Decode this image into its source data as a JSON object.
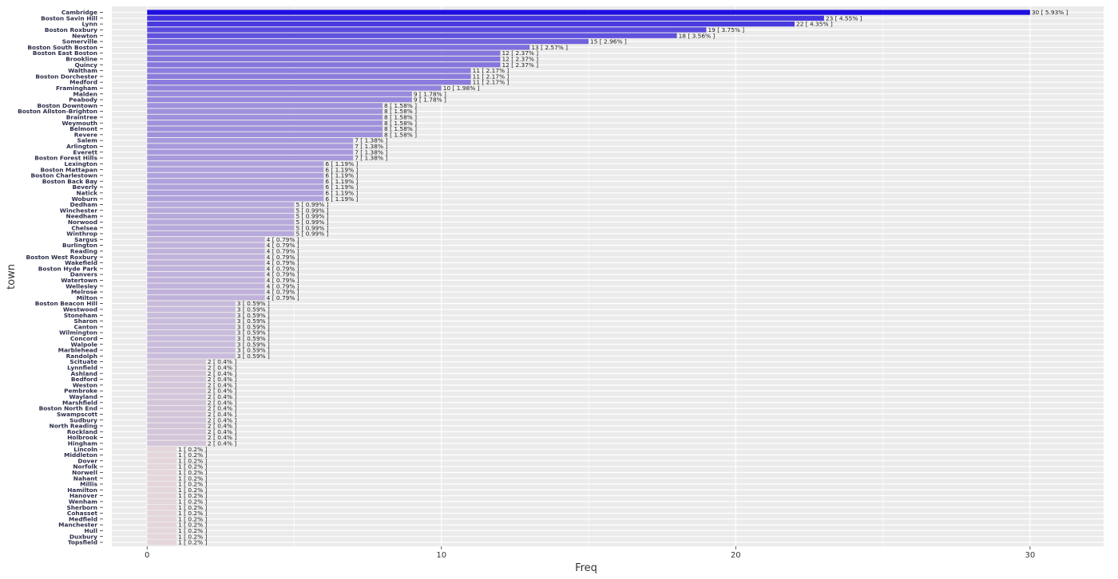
{
  "chart_data": {
    "type": "bar",
    "orientation": "horizontal",
    "xlabel": "Freq",
    "ylabel": "town",
    "xlim": [
      -1.2,
      32.5
    ],
    "xticks": [
      0,
      10,
      20,
      30
    ],
    "grid": true,
    "legend": "none",
    "colors": {
      "background": "#ebebeb",
      "grid": "#ffffff",
      "bar_high": "#1f0fe0",
      "bar_low": "#e4d6da"
    },
    "categories": [
      "Cambridge",
      "Boston Savin Hill",
      "Lynn",
      "Boston Roxbury",
      "Newton",
      "Somerville",
      "Boston South Boston",
      "Boston East Boston",
      "Brookline",
      "Quincy",
      "Waltham",
      "Boston Dorchester",
      "Medford",
      "Framingham",
      "Malden",
      "Peabody",
      "Boston Downtown",
      "Boston Allston-Brighton",
      "Braintree",
      "Weymouth",
      "Belmont",
      "Revere",
      "Salem",
      "Arlington",
      "Everett",
      "Boston Forest Hills",
      "Lexington",
      "Boston Mattapan",
      "Boston Charlestown",
      "Boston Back Bay",
      "Beverly",
      "Natick",
      "Woburn",
      "Dedham",
      "Winchester",
      "Needham",
      "Norwood",
      "Chelsea",
      "Winthrop",
      "Sargus",
      "Burlington",
      "Reading",
      "Boston West Roxbury",
      "Wakefield",
      "Boston Hyde Park",
      "Danvers",
      "Watertown",
      "Wellesley",
      "Melrose",
      "Milton",
      "Boston Beacon Hill",
      "Westwood",
      "Stoneham",
      "Sharon",
      "Canton",
      "Wilmington",
      "Concord",
      "Walpole",
      "Marblehead",
      "Randolph",
      "Scituate",
      "Lynnfield",
      "Ashland",
      "Bedford",
      "Weston",
      "Pembroke",
      "Wayland",
      "Marshfield",
      "Boston North End",
      "Swampscott",
      "Sudbury",
      "North Reading",
      "Rockland",
      "Holbrook",
      "Hingham",
      "Lincoln",
      "Middleton",
      "Dover",
      "Norfolk",
      "Norwell",
      "Nahant",
      "Millis",
      "Hamilton",
      "Hanover",
      "Wenham",
      "Sherborn",
      "Cohasset",
      "Medfield",
      "Manchester",
      "Hull",
      "Duxbury",
      "Topsfield"
    ],
    "values": [
      30,
      23,
      22,
      19,
      18,
      15,
      13,
      12,
      12,
      12,
      11,
      11,
      11,
      10,
      9,
      9,
      8,
      8,
      8,
      8,
      8,
      8,
      7,
      7,
      7,
      7,
      6,
      6,
      6,
      6,
      6,
      6,
      6,
      5,
      5,
      5,
      5,
      5,
      5,
      4,
      4,
      4,
      4,
      4,
      4,
      4,
      4,
      4,
      4,
      4,
      3,
      3,
      3,
      3,
      3,
      3,
      3,
      3,
      3,
      3,
      2,
      2,
      2,
      2,
      2,
      2,
      2,
      2,
      2,
      2,
      2,
      2,
      2,
      2,
      2,
      1,
      1,
      1,
      1,
      1,
      1,
      1,
      1,
      1,
      1,
      1,
      1,
      1,
      1,
      1,
      1,
      1
    ],
    "labels": [
      "30  [ 5.93% ]",
      "23  [ 4.55% ]",
      "22  [ 4.35% ]",
      "19  [ 3.75% ]",
      "18  [ 3.56% ]",
      "15  [ 2.96% ]",
      "13  [ 2.57% ]",
      "12  [ 2.37% ]",
      "12  [ 2.37% ]",
      "12  [ 2.37% ]",
      "11  [ 2.17% ]",
      "11  [ 2.17% ]",
      "11  [ 2.17% ]",
      "10  [ 1.98% ]",
      "9  [ 1.78% ]",
      "9  [ 1.78% ]",
      "8  [ 1.58% ]",
      "8  [ 1.58% ]",
      "8  [ 1.58% ]",
      "8  [ 1.58% ]",
      "8  [ 1.58% ]",
      "8  [ 1.58% ]",
      "7  [ 1.38% ]",
      "7  [ 1.38% ]",
      "7  [ 1.38% ]",
      "7  [ 1.38% ]",
      "6  [ 1.19% ]",
      "6  [ 1.19% ]",
      "6  [ 1.19% ]",
      "6  [ 1.19% ]",
      "6  [ 1.19% ]",
      "6  [ 1.19% ]",
      "6  [ 1.19% ]",
      "5  [ 0.99% ]",
      "5  [ 0.99% ]",
      "5  [ 0.99% ]",
      "5  [ 0.99% ]",
      "5  [ 0.99% ]",
      "5  [ 0.99% ]",
      "4  [ 0.79% ]",
      "4  [ 0.79% ]",
      "4  [ 0.79% ]",
      "4  [ 0.79% ]",
      "4  [ 0.79% ]",
      "4  [ 0.79% ]",
      "4  [ 0.79% ]",
      "4  [ 0.79% ]",
      "4  [ 0.79% ]",
      "4  [ 0.79% ]",
      "4  [ 0.79% ]",
      "3  [ 0.59% ]",
      "3  [ 0.59% ]",
      "3  [ 0.59% ]",
      "3  [ 0.59% ]",
      "3  [ 0.59% ]",
      "3  [ 0.59% ]",
      "3  [ 0.59% ]",
      "3  [ 0.59% ]",
      "3  [ 0.59% ]",
      "3  [ 0.59% ]",
      "2  [ 0.4% ]",
      "2  [ 0.4% ]",
      "2  [ 0.4% ]",
      "2  [ 0.4% ]",
      "2  [ 0.4% ]",
      "2  [ 0.4% ]",
      "2  [ 0.4% ]",
      "2  [ 0.4% ]",
      "2  [ 0.4% ]",
      "2  [ 0.4% ]",
      "2  [ 0.4% ]",
      "2  [ 0.4% ]",
      "2  [ 0.4% ]",
      "2  [ 0.4% ]",
      "2  [ 0.4% ]",
      "1  [ 0.2% ]",
      "1  [ 0.2% ]",
      "1  [ 0.2% ]",
      "1  [ 0.2% ]",
      "1  [ 0.2% ]",
      "1  [ 0.2% ]",
      "1  [ 0.2% ]",
      "1  [ 0.2% ]",
      "1  [ 0.2% ]",
      "1  [ 0.2% ]",
      "1  [ 0.2% ]",
      "1  [ 0.2% ]",
      "1  [ 0.2% ]",
      "1  [ 0.2% ]",
      "1  [ 0.2% ]",
      "1  [ 0.2% ]",
      "1  [ 0.2% ]"
    ]
  }
}
